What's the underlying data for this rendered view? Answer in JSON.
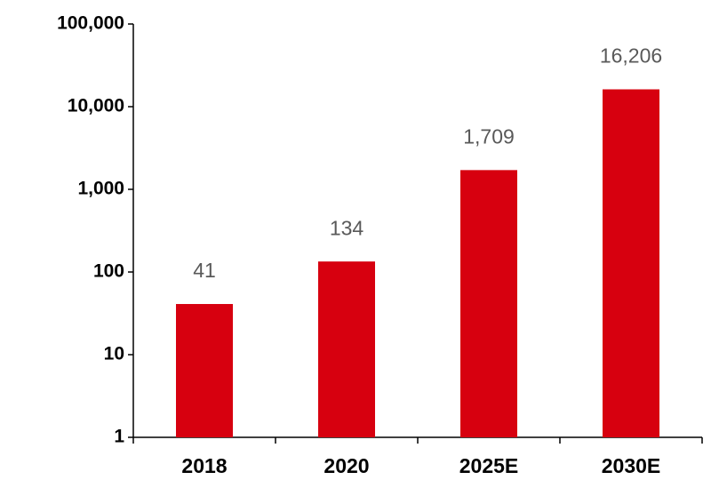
{
  "chart_data": {
    "type": "bar",
    "log_scale": true,
    "categories": [
      "2018",
      "2020",
      "2025E",
      "2030E"
    ],
    "values": [
      41,
      134,
      1709,
      16206
    ],
    "value_labels": [
      "41",
      "134",
      "1,709",
      "16,206"
    ],
    "color": "#d7000f",
    "ylim": [
      1,
      100000
    ],
    "yticks": [
      1,
      10,
      100,
      {
        "value": 1000,
        "label": "1,000"
      },
      {
        "value": 10000,
        "label": "10,000"
      },
      {
        "value": 100000,
        "label": "100,000"
      }
    ],
    "grid": false
  }
}
